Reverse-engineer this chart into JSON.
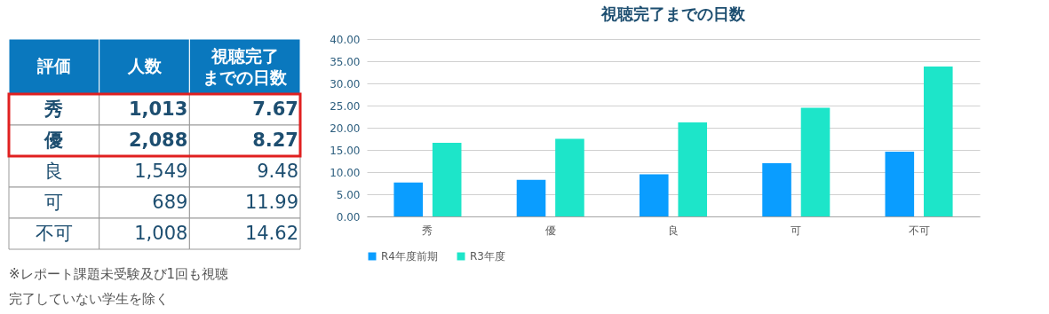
{
  "chart_data": [
    {
      "type": "other",
      "xlabel": "評価",
      "categories": [
        "秀",
        "優",
        "良",
        "可",
        "不可"
      ],
      "series": [
        {
          "name": "人数",
          "values": [
            1013,
            2088,
            1549,
            689,
            1008
          ],
          "value_labels": [
            "1,013",
            "2,088",
            "1,549",
            "689",
            "1,008"
          ]
        },
        {
          "name": "視聴完了までの日数",
          "values": [
            7.67,
            8.27,
            9.48,
            11.99,
            14.62
          ]
        }
      ],
      "data_labels": true,
      "bands": [
        {
          "axis": "y",
          "from": "秀",
          "to": "優",
          "color": "#e02020"
        }
      ],
      "annotations": [
        "※レポート課題未受験及び1回も視聴完了していない学生を除く"
      ]
    },
    {
      "type": "bar",
      "title": "視聴完了までの日数",
      "categories": [
        "秀",
        "優",
        "良",
        "可",
        "不可"
      ],
      "series": [
        {
          "name": "R4年度前期",
          "color": "#0a9dff",
          "values": [
            7.67,
            8.27,
            9.48,
            11.99,
            14.62
          ]
        },
        {
          "name": "R3年度",
          "color": "#1de5c9",
          "values": [
            16.6,
            17.5,
            21.2,
            24.5,
            33.8
          ]
        }
      ],
      "ylim": [
        0,
        40
      ],
      "yticks": [
        {
          "value": 0,
          "label": "0.00"
        },
        {
          "value": 5,
          "label": "5.00"
        },
        {
          "value": 10,
          "label": "10.00"
        },
        {
          "value": 15,
          "label": "15.00"
        },
        {
          "value": 20,
          "label": "20.00"
        },
        {
          "value": 25,
          "label": "25.00"
        },
        {
          "value": 30,
          "label": "30.00"
        },
        {
          "value": 35,
          "label": "35.00"
        },
        {
          "value": 40,
          "label": "40.00"
        }
      ],
      "grid": "y",
      "legend": "bottom"
    }
  ]
}
